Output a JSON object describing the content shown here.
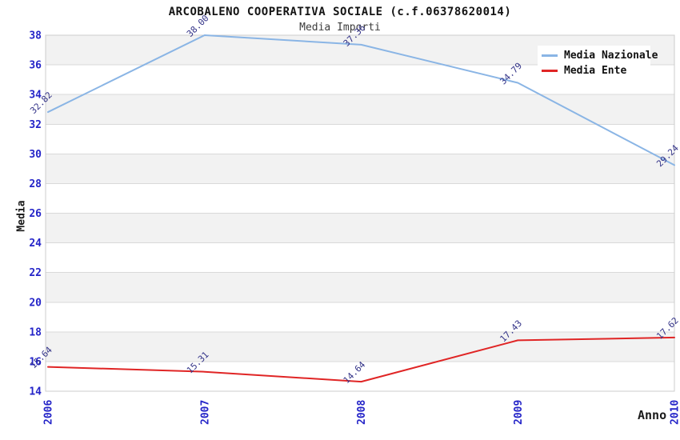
{
  "title": "ARCOBALENO COOPERATIVA SOCIALE (c.f.06378620014)",
  "subtitle": "Media Importi",
  "chart_data": {
    "type": "line",
    "categories": [
      "2006",
      "2007",
      "2008",
      "2009",
      "2010"
    ],
    "series": [
      {
        "name": "Media Nazionale",
        "color": "#8ab5e5",
        "values": [
          32.82,
          38.0,
          37.36,
          34.79,
          29.24
        ],
        "labels": [
          "32.82",
          "38.00",
          "37.36",
          "34.79",
          "29.24"
        ]
      },
      {
        "name": "Media Ente",
        "color": "#e02525",
        "values": [
          15.64,
          15.31,
          14.64,
          17.43,
          17.62
        ],
        "labels": [
          "15.64",
          "15.31",
          "14.64",
          "17.43",
          "17.62"
        ]
      }
    ],
    "xlabel": "Anno",
    "ylabel": "Media",
    "ylim": [
      14,
      38
    ],
    "yticks": [
      14,
      16,
      18,
      20,
      22,
      24,
      26,
      28,
      30,
      32,
      34,
      36,
      38
    ],
    "grid": true,
    "legend_position": "top-right",
    "data_label_rotation_deg": -45,
    "x_tick_rotation_deg": -90
  },
  "colors": {
    "tick_label": "#2424c8",
    "data_label": "#333388",
    "band_gray": "#f2f2f2",
    "gridline": "#d9d9d9",
    "plot_border": "#cccccc"
  }
}
